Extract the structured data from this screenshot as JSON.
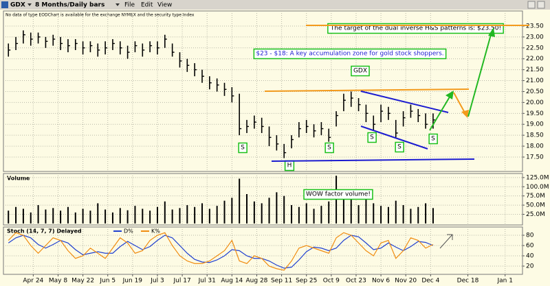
{
  "toolbar": {
    "symbol": "GDX",
    "period": "8 Months/Daily bars",
    "menus": [
      "File",
      "Edit",
      "View"
    ]
  },
  "chart_data": [
    {
      "type": "ohlc",
      "color": "#000000",
      "notice": "No data of type EODChart is available for the exchange NYMEX and the security type Index",
      "annotations": [
        "The target of the dual inverse H&S patterns is: $23.50!",
        "$23 - $18: A key accumulation zone for gold stock shoppers.",
        "GDX",
        "S",
        "H",
        "S",
        "S",
        "S",
        "S"
      ],
      "x": [
        0,
        3,
        6,
        9,
        12,
        15,
        18,
        21,
        24,
        27,
        30,
        33,
        36,
        39,
        42,
        45,
        48,
        51,
        54,
        57,
        60,
        63,
        66,
        69,
        72,
        75,
        78,
        81,
        84,
        87,
        90,
        93,
        96,
        99,
        102,
        105,
        108,
        111,
        114,
        117,
        120,
        123,
        126,
        129,
        132,
        135,
        138,
        141,
        144,
        147,
        150,
        153,
        156,
        159,
        162,
        165,
        168,
        171
      ],
      "high": [
        22.7,
        23.0,
        23.3,
        23.2,
        23.2,
        23.0,
        23.1,
        23.0,
        22.9,
        22.9,
        22.8,
        22.8,
        22.7,
        22.8,
        22.9,
        22.8,
        22.6,
        22.8,
        22.7,
        22.8,
        22.8,
        23.1,
        22.7,
        22.3,
        22.0,
        21.8,
        21.5,
        21.2,
        21.1,
        20.9,
        20.7,
        20.4,
        19.2,
        19.4,
        19.3,
        18.9,
        18.5,
        18.1,
        18.5,
        19.1,
        19.2,
        19.0,
        19.1,
        18.8,
        19.6,
        20.4,
        20.5,
        20.2,
        19.9,
        19.4,
        19.9,
        19.8,
        19.2,
        19.6,
        19.9,
        19.7,
        19.5,
        19.5
      ],
      "low": [
        22.1,
        22.4,
        22.7,
        22.6,
        22.7,
        22.5,
        22.6,
        22.4,
        22.3,
        22.4,
        22.2,
        22.3,
        22.1,
        22.2,
        22.4,
        22.2,
        22.0,
        22.3,
        22.1,
        22.3,
        22.2,
        22.5,
        22.1,
        21.6,
        21.4,
        21.2,
        20.9,
        20.6,
        20.5,
        20.3,
        20.0,
        18.5,
        18.6,
        18.8,
        18.6,
        18.0,
        17.8,
        17.45,
        17.9,
        18.4,
        18.6,
        18.4,
        18.5,
        18.2,
        18.9,
        19.6,
        19.8,
        19.6,
        19.1,
        18.7,
        19.1,
        19.2,
        18.4,
        18.9,
        19.3,
        19.1,
        18.8,
        18.8
      ],
      "close": [
        22.4,
        22.7,
        23.1,
        22.9,
        23.0,
        22.8,
        22.9,
        22.7,
        22.6,
        22.7,
        22.5,
        22.6,
        22.4,
        22.5,
        22.7,
        22.5,
        22.3,
        22.6,
        22.4,
        22.6,
        22.5,
        22.9,
        22.3,
        21.9,
        21.7,
        21.5,
        21.2,
        20.9,
        20.8,
        20.6,
        20.3,
        18.8,
        18.9,
        19.1,
        18.9,
        18.4,
        18.1,
        17.7,
        18.3,
        18.8,
        18.9,
        18.7,
        18.8,
        18.4,
        19.4,
        20.1,
        20.2,
        19.9,
        19.5,
        19.0,
        19.6,
        19.5,
        18.6,
        19.3,
        19.6,
        19.4,
        19.0,
        19.2
      ],
      "xlim": [
        -2,
        207
      ],
      "ylim": [
        16.84,
        24.19
      ],
      "yticks": [
        {
          "value": 17.5,
          "label": "17.50"
        },
        {
          "value": 18,
          "label": "18.00"
        },
        {
          "value": 18.5,
          "label": "18.50"
        },
        {
          "value": 19,
          "label": "19.00"
        },
        {
          "value": 19.5,
          "label": "19.50"
        },
        {
          "value": 20,
          "label": "20.00"
        },
        {
          "value": 20.5,
          "label": "20.50"
        },
        {
          "value": 21,
          "label": "21.00"
        },
        {
          "value": 21.5,
          "label": "21.50"
        },
        {
          "value": 22,
          "label": "22.00"
        },
        {
          "value": 22.5,
          "label": "22.50"
        },
        {
          "value": 23,
          "label": "23.00"
        },
        {
          "value": 23.5,
          "label": "23.50"
        }
      ],
      "grid": true
    },
    {
      "type": "bar",
      "title": "Volume",
      "color": "#000000",
      "annotations": [
        "WOW factor volume!"
      ],
      "x": [
        0,
        3,
        6,
        9,
        12,
        15,
        18,
        21,
        24,
        27,
        30,
        33,
        36,
        39,
        42,
        45,
        48,
        51,
        54,
        57,
        60,
        63,
        66,
        69,
        72,
        75,
        78,
        81,
        84,
        87,
        90,
        93,
        96,
        99,
        102,
        105,
        108,
        111,
        114,
        117,
        120,
        123,
        126,
        129,
        132,
        135,
        138,
        141,
        144,
        147,
        150,
        153,
        156,
        159,
        162,
        165,
        168,
        171
      ],
      "values": [
        35,
        45,
        40,
        30,
        50,
        38,
        42,
        35,
        45,
        30,
        40,
        35,
        55,
        38,
        30,
        42,
        36,
        48,
        40,
        35,
        45,
        60,
        38,
        42,
        50,
        45,
        55,
        40,
        48,
        62,
        70,
        122,
        80,
        60,
        55,
        70,
        85,
        75,
        50,
        45,
        55,
        40,
        48,
        60,
        130,
        75,
        68,
        50,
        72,
        55,
        48,
        45,
        62,
        50,
        40,
        45,
        55,
        42
      ],
      "xlim": [
        -2,
        207
      ],
      "ylim": [
        -4,
        136
      ],
      "yticks": [
        {
          "value": 25,
          "label": "25.0M"
        },
        {
          "value": 50,
          "label": "50.0M"
        },
        {
          "value": 75,
          "label": "75.0M"
        },
        {
          "value": 100,
          "label": "100.0M"
        },
        {
          "value": 125,
          "label": "125.0M"
        }
      ],
      "grid": true
    },
    {
      "type": "line",
      "title": "Stoch (14, 7, 7) Delayed",
      "x": [
        0,
        3,
        6,
        9,
        12,
        15,
        18,
        21,
        24,
        27,
        30,
        33,
        36,
        39,
        42,
        45,
        48,
        51,
        54,
        57,
        60,
        63,
        66,
        69,
        72,
        75,
        78,
        81,
        84,
        87,
        90,
        93,
        96,
        99,
        102,
        105,
        108,
        111,
        114,
        117,
        120,
        123,
        126,
        129,
        132,
        135,
        138,
        141,
        144,
        147,
        150,
        153,
        156,
        159,
        162,
        165,
        168,
        171
      ],
      "series": [
        {
          "name": "D%",
          "color": "#1f3fd0",
          "values": [
            65,
            75,
            80,
            75,
            62,
            55,
            62,
            70,
            65,
            52,
            42,
            45,
            48,
            45,
            45,
            58,
            68,
            60,
            52,
            58,
            70,
            80,
            75,
            60,
            45,
            33,
            28,
            27,
            32,
            40,
            52,
            50,
            40,
            35,
            35,
            30,
            22,
            16,
            18,
            32,
            48,
            57,
            55,
            50,
            55,
            70,
            80,
            77,
            65,
            52,
            55,
            65,
            57,
            50,
            58,
            68,
            66,
            60
          ]
        },
        {
          "name": "K%",
          "color": "#f08c10",
          "values": [
            70,
            85,
            80,
            60,
            45,
            60,
            75,
            70,
            50,
            35,
            40,
            55,
            45,
            35,
            55,
            75,
            65,
            45,
            50,
            70,
            80,
            85,
            60,
            40,
            30,
            25,
            25,
            30,
            40,
            50,
            70,
            30,
            25,
            40,
            35,
            20,
            15,
            12,
            30,
            55,
            60,
            55,
            50,
            45,
            75,
            85,
            80,
            65,
            50,
            40,
            65,
            70,
            35,
            50,
            75,
            70,
            55,
            62
          ]
        }
      ],
      "xlim": [
        -2,
        207
      ],
      "ylim": [
        4,
        96
      ],
      "yticks": [
        20,
        40,
        60,
        80
      ],
      "xticks": [
        {
          "value": 10,
          "label": "Apr 24"
        },
        {
          "value": 20,
          "label": "May 8"
        },
        {
          "value": 30,
          "label": "May 22"
        },
        {
          "value": 40,
          "label": "Jun 5"
        },
        {
          "value": 50,
          "label": "Jun 19"
        },
        {
          "value": 60,
          "label": "Jul 3"
        },
        {
          "value": 70,
          "label": "Jul 17"
        },
        {
          "value": 80,
          "label": "Jul 31"
        },
        {
          "value": 90,
          "label": "Aug 14"
        },
        {
          "value": 100,
          "label": "Aug 28"
        },
        {
          "value": 110,
          "label": "Sep 11"
        },
        {
          "value": 120,
          "label": "Sep 25"
        },
        {
          "value": 130,
          "label": "Oct 9"
        },
        {
          "value": 140,
          "label": "Oct 23"
        },
        {
          "value": 150,
          "label": "Nov 6"
        },
        {
          "value": 160,
          "label": "Nov 20"
        },
        {
          "value": 170,
          "label": "Dec 4"
        },
        {
          "value": 185,
          "label": "Dec 18"
        },
        {
          "value": 200,
          "label": "Jan 1"
        }
      ],
      "grid": true
    }
  ]
}
